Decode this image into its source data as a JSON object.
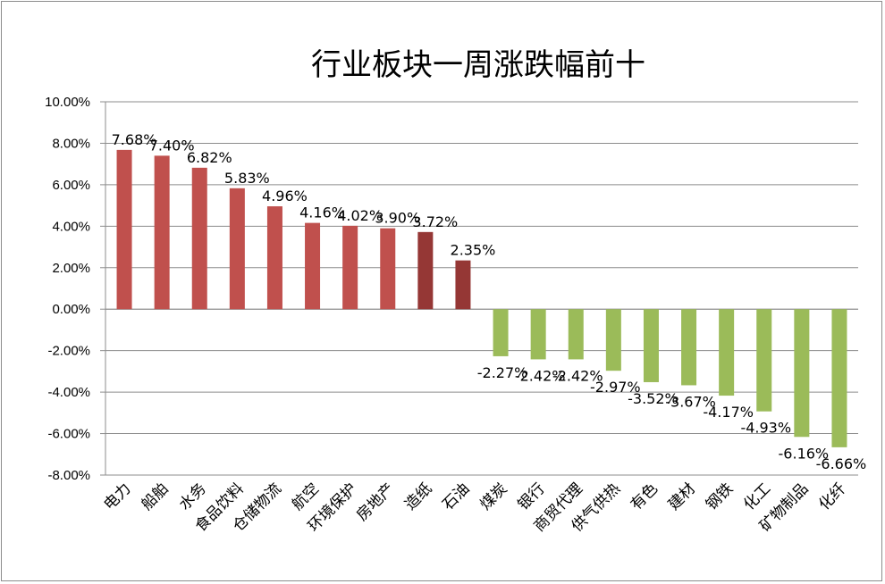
{
  "chart_data": {
    "type": "bar",
    "title": "行业板块一周涨跌幅前十",
    "xlabel": "",
    "ylabel": "",
    "ylim": [
      -8,
      10
    ],
    "y_ticks": [
      "10.00%",
      "8.00%",
      "6.00%",
      "4.00%",
      "2.00%",
      "0.00%",
      "-2.00%",
      "-4.00%",
      "-6.00%",
      "-8.00%"
    ],
    "y_tick_values": [
      10,
      8,
      6,
      4,
      2,
      0,
      -2,
      -4,
      -6,
      -8
    ],
    "grid": true,
    "legend": "none",
    "categories": [
      "电力",
      "船舶",
      "水务",
      "食品饮料",
      "仓储物流",
      "航空",
      "环境保护",
      "房地产",
      "造纸",
      "石油",
      "煤炭",
      "银行",
      "商贸代理",
      "供气供热",
      "有色",
      "建材",
      "钢铁",
      "化工",
      "矿物制品",
      "化纤"
    ],
    "values": [
      7.68,
      7.4,
      6.82,
      5.83,
      4.96,
      4.16,
      4.02,
      3.9,
      3.72,
      2.35,
      -2.27,
      -2.42,
      -2.42,
      -2.97,
      -3.52,
      -3.67,
      -4.17,
      -4.93,
      -6.16,
      -6.66
    ],
    "data_labels": [
      "7.68%",
      "7.40%",
      "6.82%",
      "5.83%",
      "4.96%",
      "4.16%",
      "4.02%",
      "3.90%",
      "3.72%",
      "2.35%",
      "-2.27%",
      "-2.42%",
      "-2.42%",
      "-2.97%",
      "-3.52%",
      "-3.67%",
      "-4.17%",
      "-4.93%",
      "-6.16%",
      "-6.66%"
    ],
    "bar_colors": [
      "#c0504d",
      "#c0504d",
      "#c0504d",
      "#c0504d",
      "#c0504d",
      "#c0504d",
      "#c0504d",
      "#c0504d",
      "#953735",
      "#953735",
      "#9bbb59",
      "#9bbb59",
      "#9bbb59",
      "#9bbb59",
      "#9bbb59",
      "#9bbb59",
      "#9bbb59",
      "#9bbb59",
      "#9bbb59",
      "#9bbb59"
    ],
    "colors": {
      "gridline": "#8c8c8c",
      "axis": "#8c8c8c",
      "category_text": "#000000"
    }
  }
}
